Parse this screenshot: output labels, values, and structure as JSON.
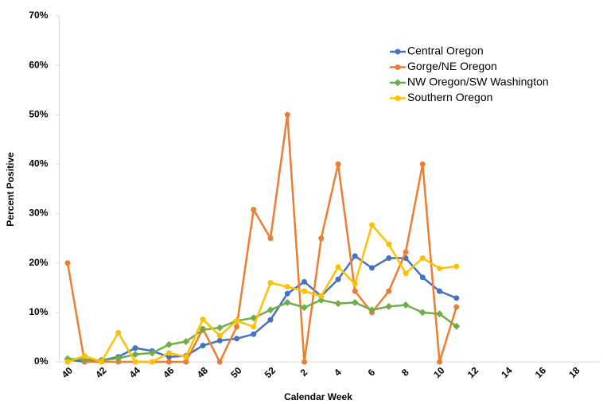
{
  "chart_data": {
    "type": "line",
    "x_label": "Calendar Week",
    "y_label": "Percent Positive",
    "categories": [
      "40",
      null,
      "42",
      null,
      "44",
      null,
      "46",
      null,
      "48",
      null,
      "50",
      null,
      "52",
      null,
      "2",
      null,
      "4",
      null,
      "6",
      null,
      "8",
      null,
      "10",
      null,
      "12",
      null,
      "14",
      null,
      "16",
      null,
      "18",
      null
    ],
    "ylim": [
      0,
      70
    ],
    "yticks": [
      {
        "value": 0,
        "label": "0%"
      },
      {
        "value": 10,
        "label": "10%"
      },
      {
        "value": 20,
        "label": "20%"
      },
      {
        "value": 30,
        "label": "30%"
      },
      {
        "value": 40,
        "label": "40%"
      },
      {
        "value": 50,
        "label": "50%"
      },
      {
        "value": 60,
        "label": "60%"
      },
      {
        "value": 70,
        "label": "70%"
      }
    ],
    "legend": "upper right",
    "series": [
      {
        "name": "Central Oregon",
        "color": "#4472c4",
        "marker": "circle",
        "values": [
          0.5,
          0,
          0.3,
          1,
          2.8,
          2.2,
          1,
          1.2,
          3.3,
          4.3,
          4.7,
          5.6,
          8.5,
          13.8,
          16.2,
          13.3,
          16.7,
          21.4,
          19,
          21,
          21,
          17.1,
          14.3,
          12.9,
          null,
          null,
          null,
          null,
          null,
          null,
          null,
          null
        ]
      },
      {
        "name": "Gorge/NE Oregon",
        "color": "#ed7d31",
        "marker": "circle",
        "values": [
          20,
          0,
          0,
          0,
          0,
          0,
          0,
          0,
          6.7,
          0,
          7.1,
          30.8,
          25,
          50,
          0,
          25,
          40,
          14.3,
          10,
          14.3,
          22.2,
          40,
          0,
          11.1,
          null,
          null,
          null,
          null,
          null,
          null,
          null,
          null
        ]
      },
      {
        "name": "NW Oregon/SW Washington",
        "color": "#70ad47",
        "marker": "diamond",
        "values": [
          0.6,
          0.5,
          0.3,
          0.7,
          1.5,
          1.8,
          3.5,
          4.1,
          6.5,
          6.9,
          8.3,
          8.9,
          10.5,
          12,
          11,
          12.5,
          11.8,
          12,
          10.5,
          11.2,
          11.5,
          10,
          9.7,
          7.2,
          null,
          null,
          null,
          null,
          null,
          null,
          null,
          null
        ]
      },
      {
        "name": "Southern Oregon",
        "color": "#ffc000",
        "marker": "circle",
        "values": [
          0,
          1.2,
          0,
          5.9,
          0,
          0,
          1.8,
          1,
          8.6,
          5.3,
          8.3,
          7.1,
          16,
          15.2,
          14.3,
          13.3,
          19.2,
          15.8,
          27.7,
          23.8,
          17.9,
          21,
          18.9,
          19.3,
          null,
          null,
          null,
          null,
          null,
          null,
          null,
          null
        ]
      }
    ]
  }
}
